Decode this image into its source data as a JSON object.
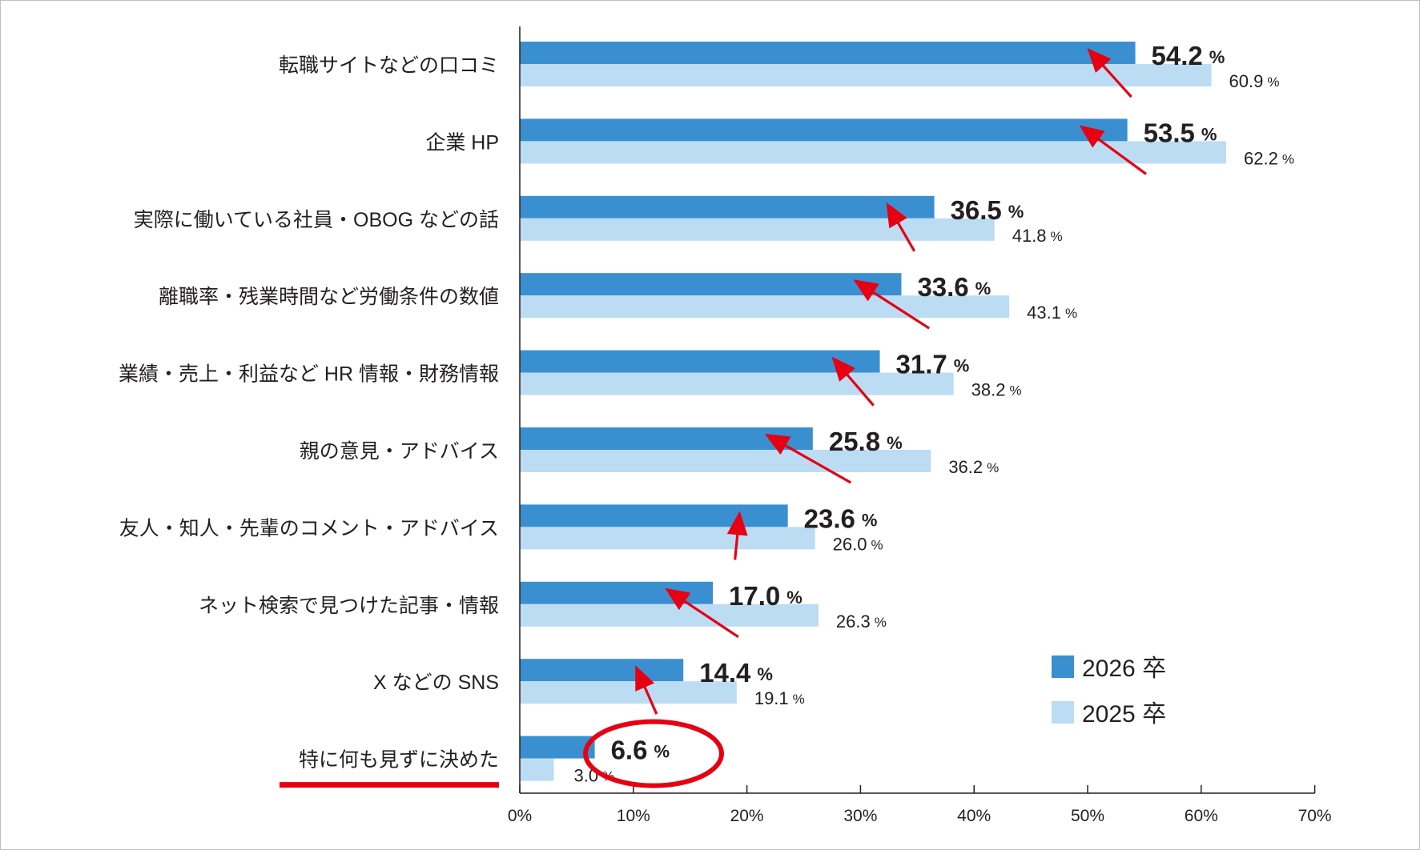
{
  "chart_data": {
    "type": "bar",
    "orientation": "horizontal",
    "categories": [
      "転職サイトなどの口コミ",
      "企業 HP",
      "実際に働いている社員・OBOG などの話",
      "離職率・残業時間など労働条件の数値",
      "業績・売上・利益など HR 情報・財務情報",
      "親の意見・アドバイス",
      "友人・知人・先輩のコメント・アドバイス",
      "ネット検索で見つけた記事・情報",
      "X などの SNS",
      "特に何も見ずに決めた"
    ],
    "series": [
      {
        "name": "2026 卒",
        "color": "#3a8fd0",
        "values": [
          54.2,
          53.5,
          36.5,
          33.6,
          31.7,
          25.8,
          23.6,
          17.0,
          14.4,
          6.6
        ],
        "labels": [
          "54.2",
          "53.5",
          "36.5",
          "33.6",
          "31.7",
          "25.8",
          "23.6",
          "17.0",
          "14.4",
          "6.6"
        ]
      },
      {
        "name": "2025 卒",
        "color": "#bcdcf4",
        "values": [
          60.9,
          62.2,
          41.8,
          43.1,
          38.2,
          36.2,
          26.0,
          26.3,
          19.1,
          3.0
        ],
        "labels": [
          "60.9",
          "62.2",
          "41.8",
          "43.1",
          "38.2",
          "36.2",
          "26.0",
          "26.3",
          "19.1",
          "3.0"
        ]
      }
    ],
    "unit": "%",
    "xlim": [
      0,
      70
    ],
    "xticks": [
      "0%",
      "10%",
      "20%",
      "30%",
      "40%",
      "50%",
      "60%",
      "70%"
    ],
    "grid": false,
    "legend": "bottom-right",
    "annotations": {
      "arrow_color": "#e60012",
      "arrows": "from 2025 value to 2026 value on each row except the last",
      "highlight_ellipse": "around 6.6 %",
      "highlight_underline": "特に何も見ずに決めた"
    }
  }
}
